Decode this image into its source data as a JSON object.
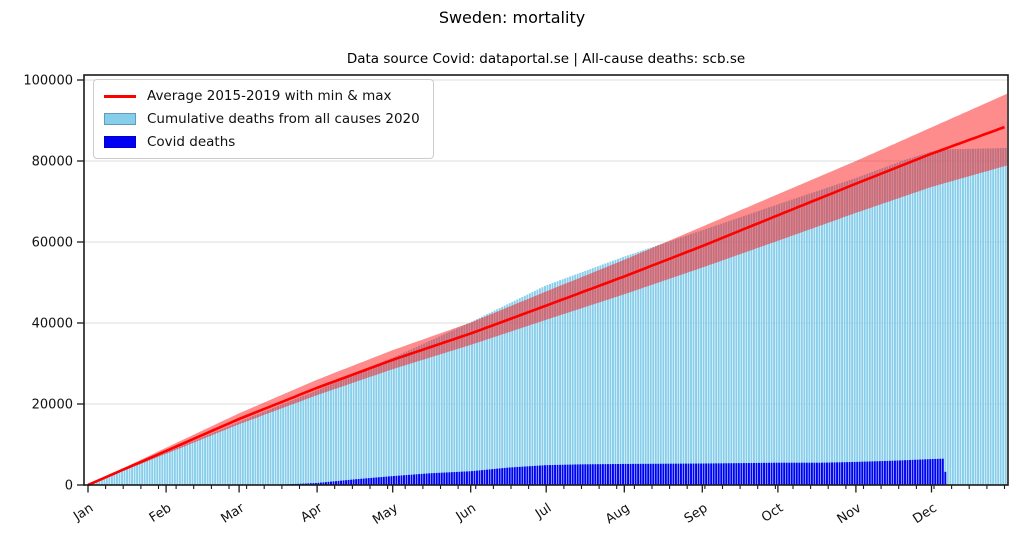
{
  "title": "Sweden: mortality",
  "subtitle": "Data source Covid: dataportal.se | All-cause deaths: scb.se",
  "legend": {
    "items": [
      {
        "type": "line",
        "color": "#ff0000",
        "label": "Average 2015-2019 with min & max"
      },
      {
        "type": "patch",
        "color": "#87ceeb",
        "label": "Cumulative deaths from all causes 2020"
      },
      {
        "type": "patch",
        "color": "#0000f5",
        "label": "Covid deaths"
      }
    ]
  },
  "axes": {
    "y_ticks": [
      0,
      20000,
      40000,
      60000,
      80000,
      100000
    ],
    "y_tick_labels": [
      "0",
      "20000",
      "40000",
      "60000",
      "80000",
      "100000"
    ],
    "ylim": [
      0,
      101250
    ],
    "x_tick_labels": [
      "Jan",
      "Feb",
      "Mar",
      "Apr",
      "May",
      "Jun",
      "Jul",
      "Aug",
      "Sep",
      "Oct",
      "Nov",
      "Dec"
    ],
    "month_start_days": [
      0,
      31,
      60,
      91,
      121,
      152,
      182,
      213,
      244,
      274,
      305,
      335
    ],
    "minor_tick_every_days": 7,
    "grid": true
  },
  "colors": {
    "all_cause_bar": "#87ceeb",
    "covid_bar": "#0000f5",
    "average_line": "#ff0000",
    "minmax_band": "rgba(255,0,0,0.45)",
    "gridline": "#dcdcdc",
    "axis": "#1a1a1a"
  },
  "chart_data": {
    "type": "bar",
    "x_unit": "day_of_year_2020",
    "y_unit": "cumulative_deaths",
    "title": "Sweden: mortality",
    "subtitle": "Data source Covid: dataportal.se | All-cause deaths: scb.se",
    "legend_position": "upper left",
    "categories": [
      "Jan",
      "Feb",
      "Mar",
      "Apr",
      "May",
      "Jun",
      "Jul",
      "Aug",
      "Sep",
      "Oct",
      "Nov",
      "Dec"
    ],
    "series": [
      {
        "name": "Cumulative deaths from all causes 2020",
        "render": "daily-bars",
        "note": "bars plateau ~83000 after early December (reporting lag)",
        "anchors": [
          [
            0,
            0
          ],
          [
            31,
            8000
          ],
          [
            60,
            15600
          ],
          [
            91,
            23400
          ],
          [
            121,
            31400
          ],
          [
            152,
            40200
          ],
          [
            182,
            49300
          ],
          [
            213,
            56400
          ],
          [
            244,
            62900
          ],
          [
            274,
            69300
          ],
          [
            305,
            75800
          ],
          [
            325,
            80400
          ],
          [
            335,
            82300
          ],
          [
            342,
            82900
          ],
          [
            364,
            83200
          ]
        ]
      },
      {
        "name": "Average 2015-2019",
        "render": "line",
        "anchors": [
          [
            0,
            0
          ],
          [
            31,
            8400
          ],
          [
            60,
            16300
          ],
          [
            91,
            24000
          ],
          [
            121,
            30900
          ],
          [
            152,
            37400
          ],
          [
            182,
            44300
          ],
          [
            213,
            51500
          ],
          [
            244,
            59000
          ],
          [
            274,
            66600
          ],
          [
            305,
            74400
          ],
          [
            335,
            81800
          ],
          [
            365,
            88600
          ]
        ]
      },
      {
        "name": "Max 2015-2019",
        "render": "band-upper",
        "anchors": [
          [
            0,
            0
          ],
          [
            31,
            9200
          ],
          [
            60,
            17700
          ],
          [
            91,
            26000
          ],
          [
            121,
            33300
          ],
          [
            152,
            40100
          ],
          [
            182,
            47800
          ],
          [
            213,
            55600
          ],
          [
            244,
            63800
          ],
          [
            274,
            71800
          ],
          [
            305,
            80000
          ],
          [
            335,
            88300
          ],
          [
            365,
            96600
          ]
        ]
      },
      {
        "name": "Min 2015-2019",
        "render": "band-lower",
        "anchors": [
          [
            0,
            0
          ],
          [
            31,
            7700
          ],
          [
            60,
            15000
          ],
          [
            91,
            22200
          ],
          [
            121,
            28600
          ],
          [
            152,
            34600
          ],
          [
            182,
            40800
          ],
          [
            213,
            47100
          ],
          [
            244,
            53700
          ],
          [
            274,
            60300
          ],
          [
            305,
            67200
          ],
          [
            335,
            73600
          ],
          [
            365,
            78900
          ]
        ]
      },
      {
        "name": "Covid deaths",
        "render": "daily-bars",
        "note": "bars stop around day 340 (early December)",
        "anchors": [
          [
            0,
            0
          ],
          [
            69,
            0
          ],
          [
            75,
            100
          ],
          [
            84,
            300
          ],
          [
            91,
            500
          ],
          [
            106,
            1400
          ],
          [
            121,
            2200
          ],
          [
            136,
            2900
          ],
          [
            152,
            3400
          ],
          [
            167,
            4300
          ],
          [
            182,
            4900
          ],
          [
            196,
            5100
          ],
          [
            213,
            5200
          ],
          [
            244,
            5300
          ],
          [
            274,
            5500
          ],
          [
            291,
            5500
          ],
          [
            305,
            5700
          ],
          [
            320,
            6000
          ],
          [
            335,
            6400
          ],
          [
            340,
            6500
          ],
          [
            341,
            0
          ],
          [
            365,
            0
          ]
        ]
      }
    ]
  }
}
